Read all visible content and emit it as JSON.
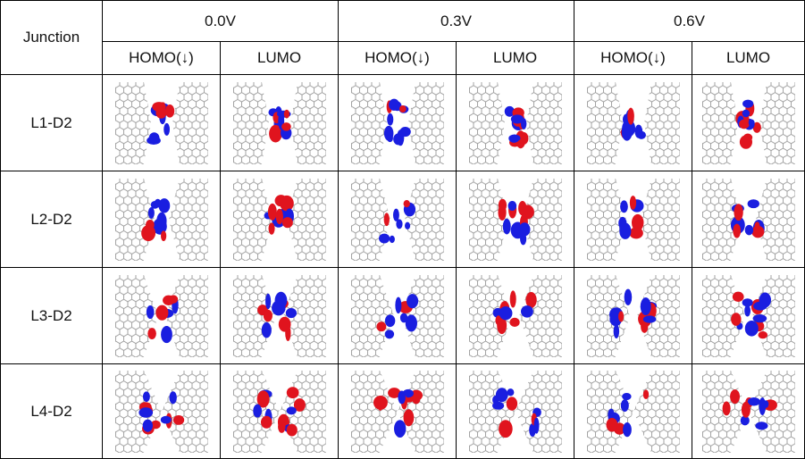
{
  "table": {
    "header": {
      "junction": "Junction",
      "voltages": [
        "0.0V",
        "0.3V",
        "0.6V"
      ],
      "orbitals": [
        "HOMO(↓)",
        "LUMO",
        "HOMO(↓)",
        "LUMO",
        "HOMO(↓)",
        "LUMO"
      ]
    },
    "rows": [
      {
        "label": "L1-D2"
      },
      {
        "label": "L2-D2"
      },
      {
        "label": "L3-D2"
      },
      {
        "label": "L4-D2"
      }
    ]
  }
}
